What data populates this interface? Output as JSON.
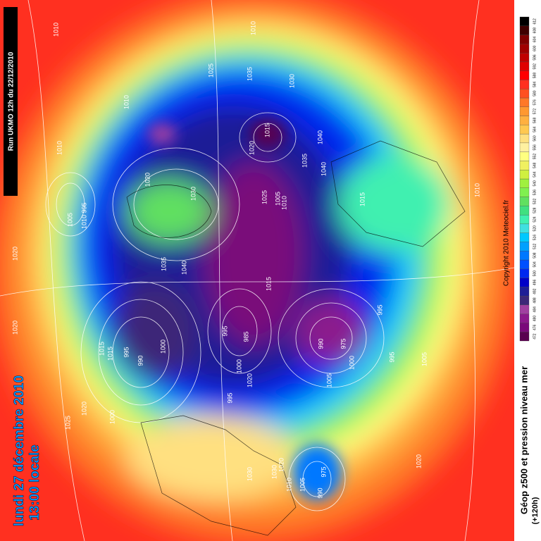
{
  "run_label": "Run UKMO 12h du 22/12/2010",
  "date_label": "lundi 27 décembre 2010",
  "time_label": "13:00 locale",
  "legend_title": "Géop z500 et pression niveau mer",
  "lead_time": "(+120h)",
  "copyright": "Copyright 2010 Meteociel.fr",
  "scale": {
    "values": [
      472,
      476,
      480,
      484,
      488,
      492,
      496,
      500,
      504,
      508,
      512,
      516,
      520,
      524,
      528,
      532,
      536,
      540,
      544,
      548,
      552,
      556,
      560,
      564,
      568,
      572,
      576,
      580,
      584,
      588,
      592,
      596,
      600,
      604,
      608,
      612
    ],
    "colors": [
      "#5a0050",
      "#7a0a7a",
      "#8c1a8c",
      "#a040a0",
      "#3c2878",
      "#1e1e96",
      "#0000c8",
      "#0028f0",
      "#0050ff",
      "#0078ff",
      "#00a0ff",
      "#00c8ff",
      "#40e0e0",
      "#40f0b0",
      "#40e080",
      "#60e060",
      "#80f050",
      "#a0f040",
      "#d0f040",
      "#f0f060",
      "#ffff80",
      "#fff0a0",
      "#ffe080",
      "#ffc850",
      "#ffb040",
      "#ff9830",
      "#ff7828",
      "#ff5020",
      "#ff3020",
      "#ff0000",
      "#e00000",
      "#c00000",
      "#a00000",
      "#800000",
      "#400000",
      "#000000"
    ]
  },
  "isobar_labels": [
    "1010",
    "1010",
    "1025",
    "1035",
    "1030",
    "1010",
    "1015",
    "1020",
    "1010",
    "1005",
    "1010",
    "1020",
    "995",
    "1005",
    "1030",
    "1025",
    "1010",
    "1035",
    "1040",
    "1040",
    "1015",
    "1020",
    "1035",
    "1040",
    "1015",
    "1010",
    "1020",
    "995",
    "1015",
    "1015",
    "1000",
    "990",
    "995",
    "995",
    "985",
    "975",
    "1000",
    "1000",
    "995",
    "990",
    "995",
    "1005",
    "1000",
    "1020",
    "1025",
    "1020",
    "1030",
    "1030",
    "1020",
    "1010",
    "1005",
    "990",
    "975",
    "1020",
    "1005"
  ]
}
